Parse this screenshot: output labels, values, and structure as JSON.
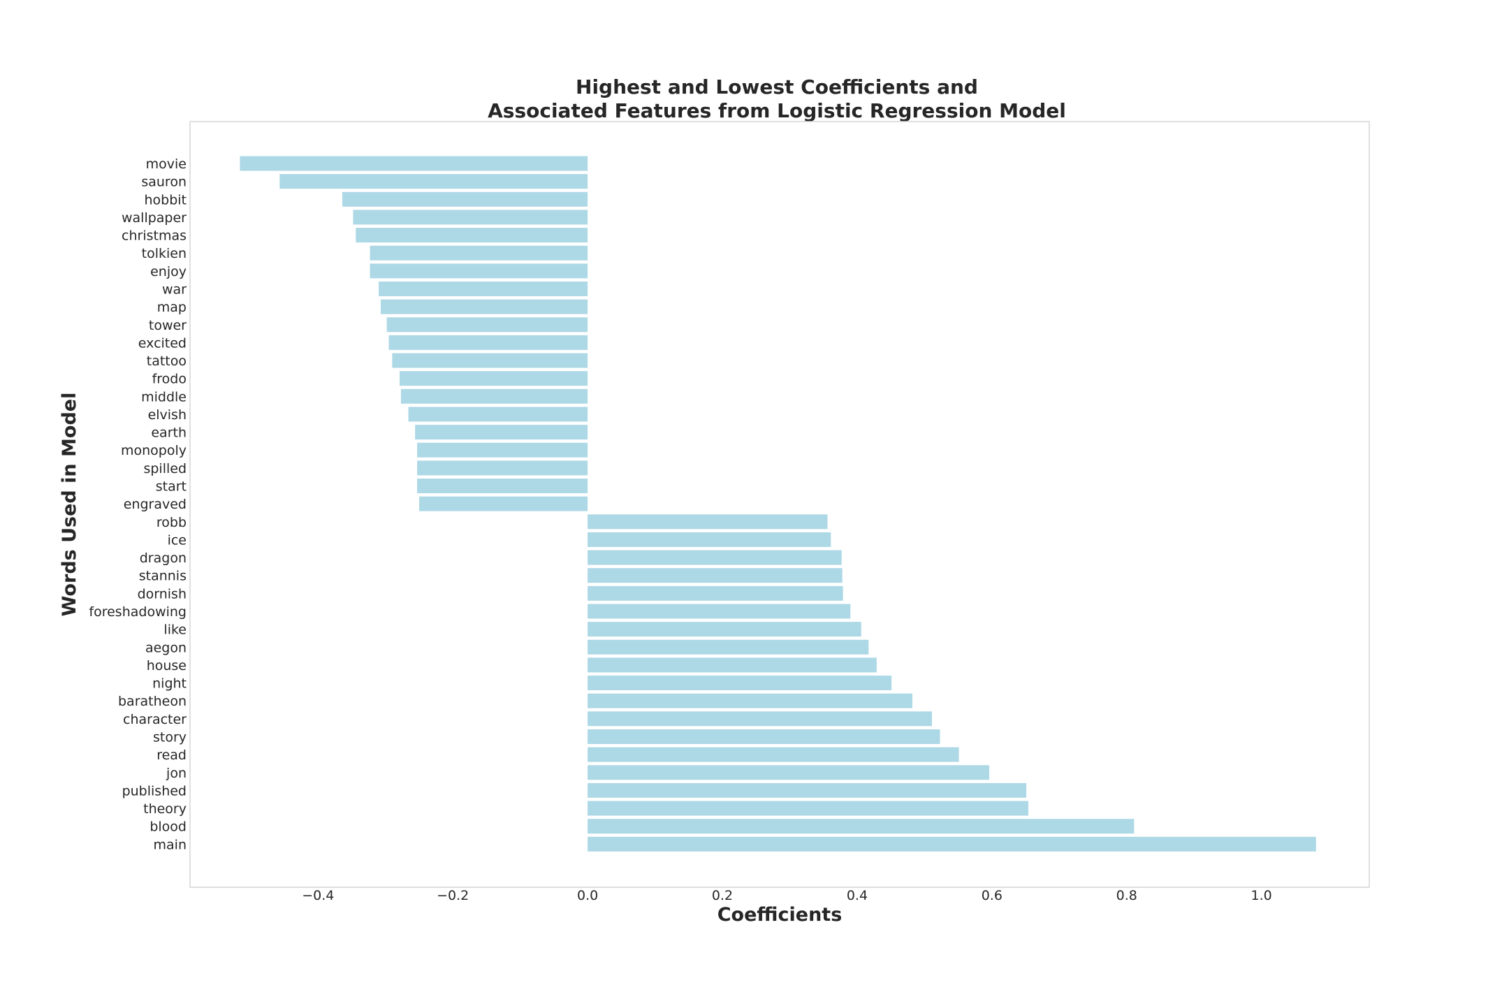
{
  "chart_data": {
    "type": "bar",
    "orientation": "horizontal",
    "title_line1": "Highest and Lowest Coefficients and",
    "title_line2": "Associated Features from Logistic Regression Model",
    "xlabel": "Coefficients",
    "ylabel": "Words Used in Model",
    "xlim": [
      -0.59,
      1.16
    ],
    "xticks": [
      -0.4,
      -0.2,
      0.0,
      0.2,
      0.4,
      0.6,
      0.8,
      1.0
    ],
    "xtick_labels": [
      "−0.4",
      "−0.2",
      "0.0",
      "0.2",
      "0.4",
      "0.6",
      "0.8",
      "1.0"
    ],
    "grid": false,
    "bar_color": "#add8e6",
    "categories": [
      "movie",
      "sauron",
      "hobbit",
      "wallpaper",
      "christmas",
      "tolkien",
      "enjoy",
      "war",
      "map",
      "tower",
      "excited",
      "tattoo",
      "frodo",
      "middle",
      "elvish",
      "earth",
      "monopoly",
      "spilled",
      "start",
      "engraved",
      "robb",
      "ice",
      "dragon",
      "stannis",
      "dornish",
      "foreshadowing",
      "like",
      "aegon",
      "house",
      "night",
      "baratheon",
      "character",
      "story",
      "read",
      "jon",
      "published",
      "theory",
      "blood",
      "main"
    ],
    "values": [
      -0.516,
      -0.457,
      -0.364,
      -0.348,
      -0.344,
      -0.323,
      -0.323,
      -0.31,
      -0.307,
      -0.298,
      -0.295,
      -0.29,
      -0.279,
      -0.277,
      -0.266,
      -0.256,
      -0.253,
      -0.253,
      -0.253,
      -0.25,
      0.356,
      0.361,
      0.377,
      0.378,
      0.379,
      0.39,
      0.406,
      0.417,
      0.429,
      0.451,
      0.482,
      0.511,
      0.523,
      0.551,
      0.596,
      0.651,
      0.654,
      0.811,
      1.081
    ]
  }
}
